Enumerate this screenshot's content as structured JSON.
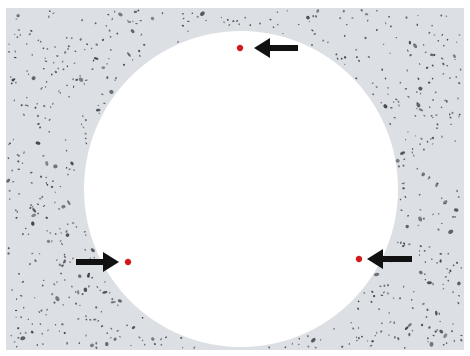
{
  "image": {
    "subject": "acoustic-ceiling-tile-with-circular-cutout",
    "colors": {
      "tile": "#dcdfe3",
      "tile_frame": "#ffffff",
      "pinhole": "#3a3d42",
      "cutout": "#ffffff",
      "marker_dot": "#d11a1a",
      "arrow": "#111111"
    },
    "markers": [
      {
        "label_name": "top-point",
        "arrow_icon": "arrow-left-icon"
      },
      {
        "label_name": "left-point",
        "arrow_icon": "arrow-right-icon"
      },
      {
        "label_name": "right-point",
        "arrow_icon": "arrow-left-icon"
      }
    ]
  }
}
